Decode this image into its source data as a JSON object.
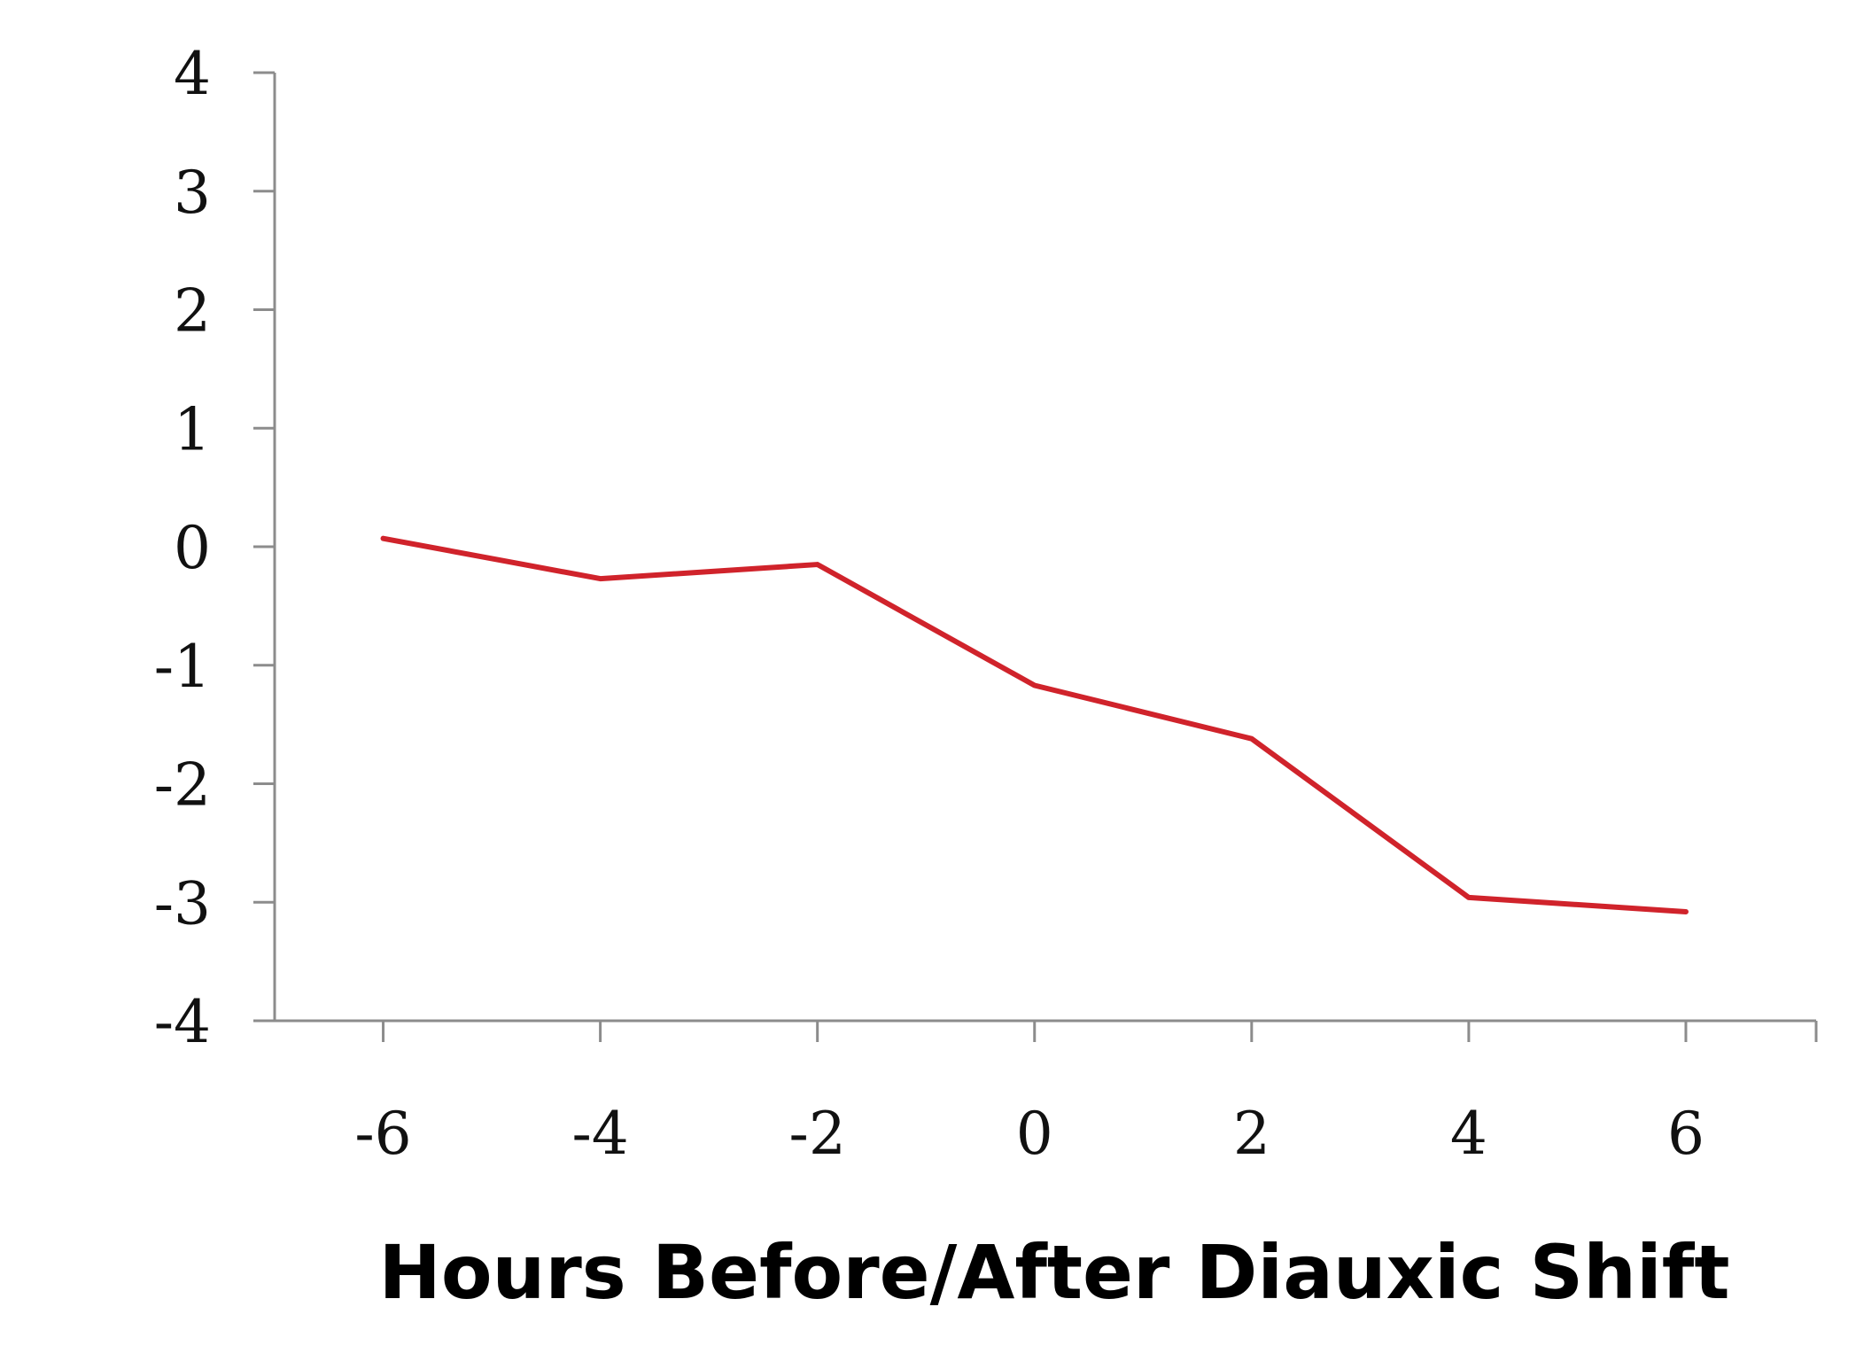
{
  "chart_data": {
    "type": "line",
    "title": "",
    "xlabel": "Hours Before/After Diauxic Shift",
    "ylabel": "",
    "x": [
      -6,
      -4,
      -2,
      0,
      2,
      4,
      6
    ],
    "series": [
      {
        "values": [
          0.07,
          -0.27,
          -0.15,
          -1.17,
          -1.62,
          -2.96,
          -3.08
        ],
        "color": "#d0232b"
      }
    ],
    "xlim": [
      -7,
      7.2
    ],
    "ylim": [
      -4,
      4
    ],
    "x_ticks": [
      "-6",
      "-4",
      "-2",
      "0",
      "2",
      "4",
      "6"
    ],
    "y_ticks": [
      "4",
      "3",
      "2",
      "1",
      "0",
      "-1",
      "-2",
      "-3",
      "-4"
    ],
    "grid": false,
    "legend": "none",
    "axis_color": "#8c8c8c"
  }
}
